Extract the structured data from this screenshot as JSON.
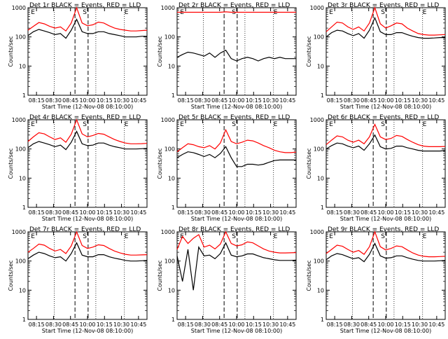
{
  "figure": {
    "xlabel": "Start Time (12-Nov-08 08:10:00)",
    "ylabel": "Counts/sec",
    "x_ticks": [
      "08:15",
      "08:30",
      "08:45",
      "10:00",
      "10:15",
      "10:30",
      "10:45"
    ],
    "y_ticks": [
      "1",
      "10",
      "100",
      "1000"
    ],
    "marker_labels": [
      "E",
      "S",
      "E"
    ]
  },
  "chart_data": [
    {
      "type": "line",
      "title": "Det 1r BLACK = Events, RED = LLD",
      "x": [
        0,
        0.5,
        1,
        1.5,
        2,
        2.5,
        3,
        3.5,
        4,
        4.5,
        5,
        5.5,
        6,
        6.5,
        7,
        7.5,
        8,
        8.5,
        9,
        9.5,
        10,
        10.5,
        11
      ],
      "xlim": [
        0,
        11
      ],
      "ylim": [
        1,
        1000
      ],
      "log_y": true,
      "series": [
        {
          "color": "#ff0000",
          "values": [
            170,
            230,
            310,
            280,
            230,
            200,
            220,
            160,
            300,
            1000,
            300,
            240,
            260,
            320,
            300,
            240,
            200,
            180,
            170,
            160,
            160,
            165,
            170
          ]
        },
        {
          "color": "#000000",
          "values": [
            110,
            150,
            180,
            160,
            140,
            120,
            130,
            90,
            170,
            400,
            150,
            130,
            130,
            150,
            150,
            130,
            120,
            110,
            100,
            100,
            100,
            105,
            105
          ]
        }
      ]
    },
    {
      "type": "line",
      "title": "Det 2r BLACK = Events, RED = LLD",
      "x": [
        0,
        0.5,
        1,
        1.5,
        2,
        2.5,
        3,
        3.5,
        4,
        4.5,
        5,
        5.5,
        6,
        6.5,
        7,
        7.5,
        8,
        8.5,
        9,
        9.5,
        10,
        10.5,
        11
      ],
      "xlim": [
        0,
        11
      ],
      "ylim": [
        1,
        1000
      ],
      "log_y": true,
      "series": [
        {
          "color": "#ff0000",
          "values": [
            700,
            700,
            700,
            700,
            700,
            700,
            700,
            700,
            700,
            720,
            700,
            700,
            700,
            700,
            700,
            700,
            700,
            700,
            700,
            700,
            700,
            700,
            700
          ]
        },
        {
          "color": "#000000",
          "values": [
            20,
            25,
            30,
            28,
            25,
            22,
            28,
            20,
            28,
            35,
            18,
            15,
            18,
            20,
            18,
            15,
            18,
            20,
            18,
            20,
            18,
            18,
            18
          ]
        }
      ]
    },
    {
      "type": "line",
      "title": "Det 3r BLACK = Events, RED = LLD",
      "x": [
        0,
        0.5,
        1,
        1.5,
        2,
        2.5,
        3,
        3.5,
        4,
        4.5,
        5,
        5.5,
        6,
        6.5,
        7,
        7.5,
        8,
        8.5,
        9,
        9.5,
        10,
        10.5,
        11
      ],
      "xlim": [
        0,
        11
      ],
      "ylim": [
        1,
        1000
      ],
      "log_y": true,
      "series": [
        {
          "color": "#ff0000",
          "values": [
            150,
            220,
            320,
            300,
            220,
            180,
            220,
            160,
            300,
            1000,
            280,
            200,
            240,
            300,
            280,
            200,
            160,
            130,
            120,
            115,
            115,
            118,
            120
          ]
        },
        {
          "color": "#000000",
          "values": [
            100,
            140,
            170,
            160,
            130,
            110,
            130,
            90,
            170,
            450,
            150,
            120,
            120,
            140,
            140,
            120,
            105,
            95,
            90,
            90,
            92,
            95,
            95
          ]
        }
      ]
    },
    {
      "type": "line",
      "title": "Det 4r BLACK = Events, RED = LLD",
      "x": [
        0,
        0.5,
        1,
        1.5,
        2,
        2.5,
        3,
        3.5,
        4,
        4.5,
        5,
        5.5,
        6,
        6.5,
        7,
        7.5,
        8,
        8.5,
        9,
        9.5,
        10,
        10.5,
        11
      ],
      "xlim": [
        0,
        11
      ],
      "ylim": [
        1,
        1000
      ],
      "log_y": true,
      "series": [
        {
          "color": "#ff0000",
          "values": [
            180,
            260,
            360,
            330,
            260,
            210,
            240,
            170,
            320,
            1000,
            330,
            260,
            290,
            340,
            320,
            260,
            210,
            180,
            160,
            150,
            150,
            152,
            155
          ]
        },
        {
          "color": "#000000",
          "values": [
            110,
            150,
            180,
            160,
            140,
            120,
            135,
            95,
            170,
            400,
            150,
            130,
            135,
            160,
            160,
            135,
            120,
            110,
            100,
            100,
            100,
            102,
            105
          ]
        }
      ]
    },
    {
      "type": "line",
      "title": "Det 5r BLACK = Events, RED = LLD",
      "x": [
        0,
        0.5,
        1,
        1.5,
        2,
        2.5,
        3,
        3.5,
        4,
        4.5,
        5,
        5.5,
        6,
        6.5,
        7,
        7.5,
        8,
        8.5,
        9,
        9.5,
        10,
        10.5,
        11
      ],
      "xlim": [
        0,
        11
      ],
      "ylim": [
        1,
        1000
      ],
      "log_y": true,
      "series": [
        {
          "color": "#ff0000",
          "values": [
            80,
            110,
            150,
            140,
            120,
            110,
            130,
            100,
            160,
            450,
            180,
            150,
            170,
            200,
            190,
            160,
            130,
            110,
            90,
            80,
            75,
            75,
            78
          ]
        },
        {
          "color": "#000000",
          "values": [
            50,
            65,
            80,
            75,
            65,
            55,
            65,
            50,
            70,
            120,
            50,
            25,
            25,
            30,
            30,
            28,
            30,
            35,
            40,
            42,
            42,
            42,
            42
          ]
        }
      ]
    },
    {
      "type": "line",
      "title": "Det 6r BLACK = Events, RED = LLD",
      "x": [
        0,
        0.5,
        1,
        1.5,
        2,
        2.5,
        3,
        3.5,
        4,
        4.5,
        5,
        5.5,
        6,
        6.5,
        7,
        7.5,
        8,
        8.5,
        9,
        9.5,
        10,
        10.5,
        11
      ],
      "xlim": [
        0,
        11
      ],
      "ylim": [
        1,
        1000
      ],
      "log_y": true,
      "series": [
        {
          "color": "#ff0000",
          "values": [
            140,
            200,
            280,
            260,
            200,
            170,
            200,
            150,
            260,
            700,
            260,
            210,
            230,
            290,
            270,
            210,
            170,
            140,
            125,
            120,
            120,
            120,
            122
          ]
        },
        {
          "color": "#000000",
          "values": [
            100,
            130,
            160,
            150,
            125,
            110,
            125,
            90,
            150,
            300,
            120,
            100,
            105,
            125,
            125,
            110,
            100,
            90,
            85,
            85,
            85,
            85,
            88
          ]
        }
      ]
    },
    {
      "type": "line",
      "title": "Det 7r BLACK = Events, RED = LLD",
      "x": [
        0,
        0.5,
        1,
        1.5,
        2,
        2.5,
        3,
        3.5,
        4,
        4.5,
        5,
        5.5,
        6,
        6.5,
        7,
        7.5,
        8,
        8.5,
        9,
        9.5,
        10,
        10.5,
        11
      ],
      "xlim": [
        0,
        11
      ],
      "ylim": [
        1,
        1000
      ],
      "log_y": true,
      "series": [
        {
          "color": "#ff0000",
          "values": [
            200,
            270,
            380,
            350,
            270,
            220,
            250,
            180,
            330,
            1000,
            340,
            270,
            300,
            360,
            340,
            270,
            220,
            190,
            170,
            160,
            160,
            162,
            165
          ]
        },
        {
          "color": "#000000",
          "values": [
            120,
            160,
            200,
            180,
            150,
            130,
            140,
            100,
            180,
            420,
            160,
            140,
            140,
            165,
            165,
            140,
            125,
            115,
            105,
            100,
            100,
            102,
            105
          ]
        }
      ]
    },
    {
      "type": "line",
      "title": "Det 8r BLACK = Events, RED = LLD",
      "x": [
        0,
        0.5,
        1,
        1.5,
        2,
        2.5,
        3,
        3.5,
        4,
        4.5,
        5,
        5.5,
        6,
        6.5,
        7,
        7.5,
        8,
        8.5,
        9,
        9.5,
        10,
        10.5,
        11
      ],
      "xlim": [
        0,
        11
      ],
      "ylim": [
        1,
        1000
      ],
      "log_y": true,
      "series": [
        {
          "color": "#ff0000",
          "values": [
            250,
            700,
            400,
            600,
            800,
            300,
            350,
            260,
            380,
            1000,
            400,
            330,
            360,
            450,
            420,
            330,
            260,
            220,
            200,
            190,
            190,
            192,
            195
          ]
        },
        {
          "color": "#000000",
          "values": [
            150,
            20,
            250,
            10,
            300,
            150,
            160,
            120,
            180,
            420,
            160,
            140,
            150,
            175,
            175,
            150,
            130,
            120,
            110,
            105,
            105,
            105,
            108
          ]
        }
      ]
    },
    {
      "type": "line",
      "title": "Det 9r BLACK = Events, RED = LLD",
      "x": [
        0,
        0.5,
        1,
        1.5,
        2,
        2.5,
        3,
        3.5,
        4,
        4.5,
        5,
        5.5,
        6,
        6.5,
        7,
        7.5,
        8,
        8.5,
        9,
        9.5,
        10,
        10.5,
        11
      ],
      "xlim": [
        0,
        11
      ],
      "ylim": [
        1,
        1000
      ],
      "log_y": true,
      "series": [
        {
          "color": "#ff0000",
          "values": [
            180,
            250,
            350,
            320,
            250,
            200,
            230,
            170,
            310,
            1000,
            310,
            240,
            270,
            330,
            310,
            240,
            190,
            160,
            145,
            140,
            140,
            142,
            145
          ]
        },
        {
          "color": "#000000",
          "values": [
            110,
            150,
            180,
            165,
            140,
            120,
            130,
            95,
            170,
            400,
            150,
            125,
            130,
            150,
            150,
            130,
            115,
            105,
            100,
            100,
            100,
            102,
            105
          ]
        }
      ]
    }
  ]
}
